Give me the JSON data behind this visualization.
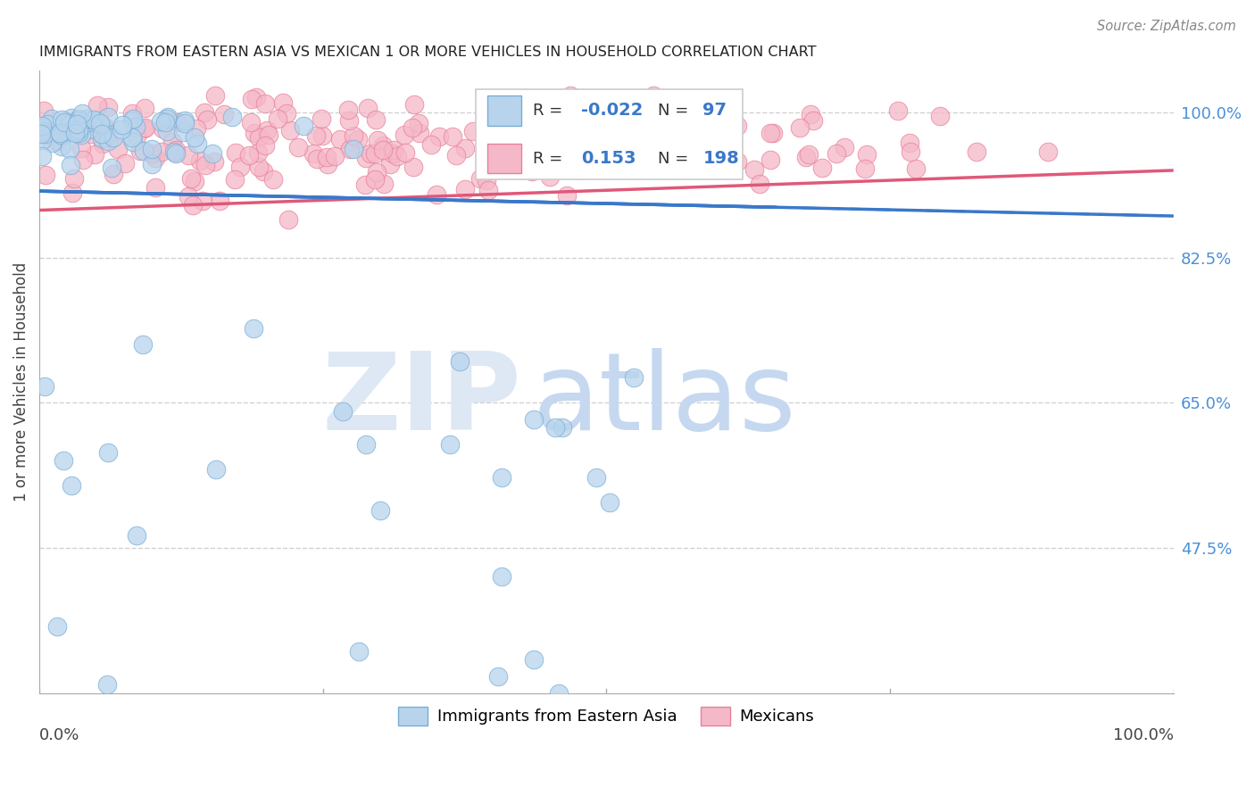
{
  "title": "IMMIGRANTS FROM EASTERN ASIA VS MEXICAN 1 OR MORE VEHICLES IN HOUSEHOLD CORRELATION CHART",
  "source": "Source: ZipAtlas.com",
  "ylabel": "1 or more Vehicles in Household",
  "ytick_positions": [
    0.475,
    0.65,
    0.825,
    1.0
  ],
  "ytick_labels": [
    "47.5%",
    "65.0%",
    "82.5%",
    "100.0%"
  ],
  "xtick_positions": [
    0.0,
    0.25,
    0.5,
    0.75,
    1.0
  ],
  "xlim": [
    0.0,
    1.0
  ],
  "ylim": [
    0.3,
    1.05
  ],
  "legend_blue_R": "-0.022",
  "legend_blue_N": "97",
  "legend_pink_R": "0.153",
  "legend_pink_N": "198",
  "watermark_zip": "ZIP",
  "watermark_atlas": "atlas",
  "blue_face_color": "#b8d4ed",
  "blue_edge_color": "#7aaed4",
  "blue_line_color": "#3a78c9",
  "pink_face_color": "#f5b8c8",
  "pink_edge_color": "#e8809a",
  "pink_line_color": "#e05878",
  "grid_color": "#cccccc",
  "title_color": "#222222",
  "source_color": "#888888",
  "ylabel_color": "#444444",
  "tick_label_color": "#4a90d9",
  "xlabel_color": "#444444"
}
